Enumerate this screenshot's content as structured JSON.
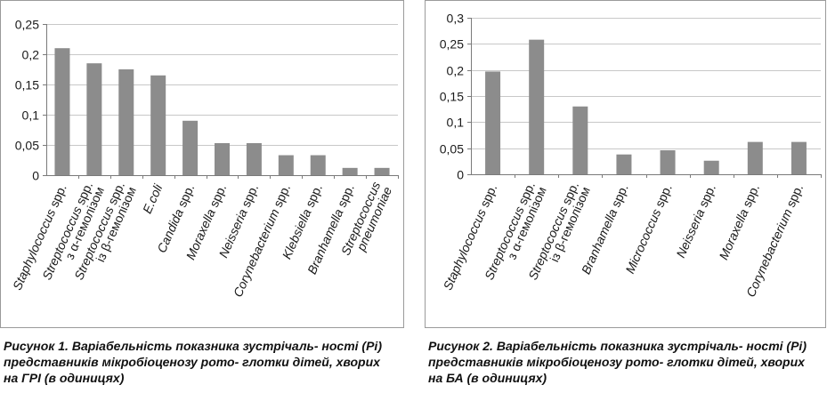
{
  "chart_data": [
    {
      "type": "bar",
      "categories": [
        "Staphylococcus spp.",
        "Streptococcus spp. з α-гемолізом",
        "Streptococcus spp. із β-гемолізом",
        "E.coli",
        "Candida spp.",
        "Moraxella spp.",
        "Neisseria spp.",
        "Corynebacterium spp.",
        "Klebsiella spp.",
        "Branhamella spp.",
        "Streptococcus pneumoniae"
      ],
      "values": [
        0.21,
        0.185,
        0.175,
        0.165,
        0.09,
        0.053,
        0.053,
        0.033,
        0.033,
        0.012,
        0.012
      ],
      "yticks": [
        "0",
        "0,05",
        "0,1",
        "0,15",
        "0,2",
        "0,25"
      ],
      "ylim": [
        0,
        0.25
      ],
      "grid": true,
      "title": "",
      "xlabel": "",
      "ylabel": ""
    },
    {
      "type": "bar",
      "categories": [
        "Staphylococcus spp.",
        "Streptococcus spp. з α-гемолізом",
        "Streptococcus spp. із β-гемолізом",
        "Branhamella spp.",
        "Micrococcus spp.",
        "Neisseria spp.",
        "Moraxella spp.",
        "Corynebacterium spp."
      ],
      "values": [
        0.197,
        0.258,
        0.13,
        0.038,
        0.046,
        0.026,
        0.062,
        0.062
      ],
      "yticks": [
        "0",
        "0,05",
        "0,1",
        "0,15",
        "0,2",
        "0,25",
        "0,3"
      ],
      "ylim": [
        0,
        0.3
      ],
      "grid": true,
      "title": "",
      "xlabel": "",
      "ylabel": ""
    }
  ],
  "captions": [
    {
      "label": "Рисунок 1.",
      "text": "Варіабельність показника зустрічаль- ності (Pi) представників мікробіоценозу рото- глотки дітей, хворих на ГРІ (в одиницях)"
    },
    {
      "label": "Рисунок 2.",
      "text": "Варіабельність показника зустрічаль- ності (Pi) представників мікробіоценозу рото- глотки дітей, хворих на БА (в одиницях)"
    }
  ],
  "colors": {
    "bar": "#8c8c8c",
    "grid": "#c8c8c8",
    "frame": "#9a9a9a"
  }
}
